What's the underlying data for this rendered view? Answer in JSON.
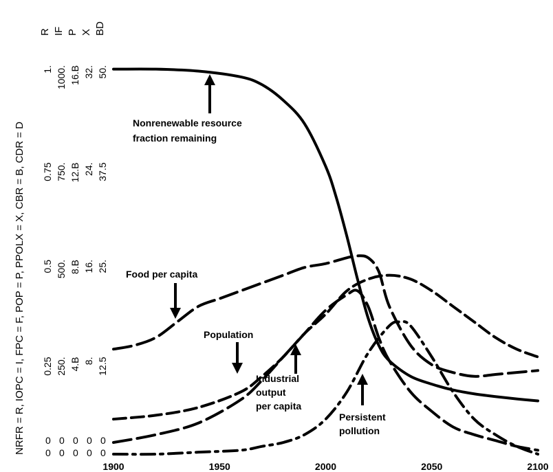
{
  "chart_data": {
    "type": "line",
    "ylabel": "NRFR = R, IOPC = I, FPC = F, POP = P, PPOLX = X, CBR = B, CDR = D",
    "variable_codes": [
      "R",
      "IF",
      "P",
      "X",
      "BD"
    ],
    "scales": [
      [
        "0",
        "0.25",
        "0.5",
        "0.75",
        "1."
      ],
      [
        "0",
        "250.",
        "500.",
        "750.",
        "1000."
      ],
      [
        "0",
        "4.B",
        "8.B",
        "12.B",
        "16.B"
      ],
      [
        "0",
        "8.",
        "16.",
        "24.",
        "32."
      ],
      [
        "0",
        "12.5",
        "25.",
        "37.5",
        "50."
      ]
    ],
    "x_ticks": [
      "1900",
      "1950",
      "2000",
      "2050",
      "2100"
    ],
    "xlim": [
      1900,
      2100
    ],
    "ylim": [
      0,
      1
    ],
    "series": [
      {
        "name": "Nonrenewable resource fraction remaining",
        "dash": "solid",
        "x": [
          1900,
          1920,
          1940,
          1960,
          1970,
          1980,
          1990,
          2000,
          2005,
          2010,
          2015,
          2020,
          2025,
          2030,
          2040,
          2050,
          2060,
          2070,
          2080,
          2090,
          2100
        ],
        "y": [
          0.99,
          0.99,
          0.985,
          0.97,
          0.95,
          0.91,
          0.85,
          0.74,
          0.66,
          0.56,
          0.45,
          0.35,
          0.28,
          0.24,
          0.2,
          0.18,
          0.165,
          0.155,
          0.148,
          0.142,
          0.137
        ]
      },
      {
        "name": "Food per capita",
        "dash": "long-dash",
        "x": [
          1900,
          1910,
          1920,
          1930,
          1940,
          1950,
          1960,
          1970,
          1980,
          1990,
          2000,
          2010,
          2015,
          2020,
          2025,
          2030,
          2040,
          2050,
          2060,
          2070,
          2080,
          2090,
          2100
        ],
        "y": [
          0.27,
          0.28,
          0.3,
          0.34,
          0.38,
          0.4,
          0.42,
          0.44,
          0.46,
          0.48,
          0.49,
          0.505,
          0.51,
          0.505,
          0.47,
          0.38,
          0.28,
          0.23,
          0.21,
          0.2,
          0.205,
          0.21,
          0.215
        ]
      },
      {
        "name": "Population",
        "dash": "medium-dash",
        "x": [
          1900,
          1920,
          1940,
          1960,
          1970,
          1980,
          1990,
          2000,
          2010,
          2020,
          2030,
          2040,
          2050,
          2060,
          2070,
          2080,
          2090,
          2100
        ],
        "y": [
          0.09,
          0.1,
          0.12,
          0.16,
          0.2,
          0.25,
          0.31,
          0.36,
          0.42,
          0.45,
          0.46,
          0.45,
          0.42,
          0.38,
          0.34,
          0.3,
          0.27,
          0.25
        ]
      },
      {
        "name": "Industrial output per capita",
        "dash": "long-dash",
        "x": [
          1900,
          1920,
          1940,
          1960,
          1970,
          1980,
          1990,
          2000,
          2010,
          2015,
          2020,
          2025,
          2030,
          2040,
          2050,
          2060,
          2070,
          2080,
          2090,
          2100
        ],
        "y": [
          0.03,
          0.05,
          0.08,
          0.14,
          0.19,
          0.25,
          0.31,
          0.37,
          0.41,
          0.42,
          0.38,
          0.3,
          0.24,
          0.16,
          0.11,
          0.07,
          0.05,
          0.035,
          0.02,
          0.01
        ]
      },
      {
        "name": "Persistent pollution",
        "dash": "dash-dot",
        "x": [
          1900,
          1920,
          1940,
          1960,
          1970,
          1980,
          1990,
          2000,
          2010,
          2020,
          2030,
          2035,
          2040,
          2050,
          2060,
          2070,
          2080,
          2090,
          2100
        ],
        "y": [
          0.0,
          0.0,
          0.005,
          0.01,
          0.02,
          0.03,
          0.05,
          0.09,
          0.16,
          0.26,
          0.33,
          0.34,
          0.33,
          0.25,
          0.16,
          0.09,
          0.05,
          0.02,
          0.0
        ]
      }
    ],
    "annotations": [
      {
        "lines": [
          "Nonrenewable resource",
          "fraction remaining"
        ]
      },
      {
        "lines": [
          "Food per capita"
        ]
      },
      {
        "lines": [
          "Population"
        ]
      },
      {
        "lines": [
          "Industrial",
          "output",
          "per capita"
        ]
      },
      {
        "lines": [
          "Persistent",
          "pollution"
        ]
      }
    ],
    "grid": false,
    "legend": "none"
  }
}
